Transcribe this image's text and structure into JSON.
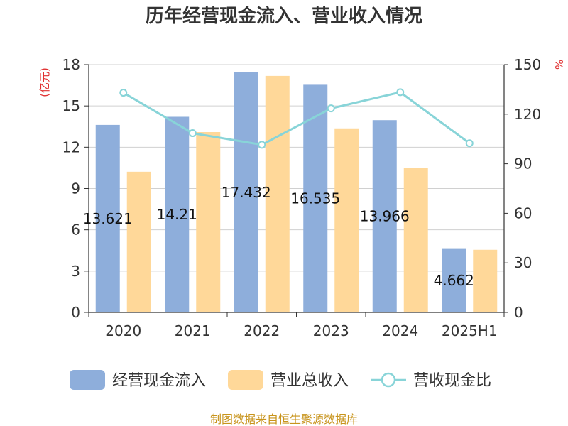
{
  "chart_data": {
    "type": "bar",
    "title": "历年经营现金流入、营业收入情况",
    "categories": [
      "2020",
      "2021",
      "2022",
      "2023",
      "2024",
      "2025H1"
    ],
    "series": [
      {
        "name": "经营现金流入",
        "type": "bar",
        "axis": "left",
        "color": "#8eaedb",
        "values": [
          13.621,
          14.21,
          17.432,
          16.535,
          13.966,
          4.662
        ],
        "labels": [
          "13.621",
          "14.21",
          "17.432",
          "16.535",
          "13.966",
          "4.662"
        ]
      },
      {
        "name": "营业总收入",
        "type": "bar",
        "axis": "left",
        "color": "#ffd899",
        "values": [
          10.22,
          13.1,
          17.18,
          13.37,
          10.48,
          4.55
        ]
      },
      {
        "name": "营收现金比",
        "type": "line",
        "axis": "right",
        "color": "#88d4d8",
        "values": [
          133,
          108.5,
          101.5,
          123.5,
          133.3,
          102.4
        ]
      }
    ],
    "y_left": {
      "label": "(亿元)",
      "min": 0,
      "max": 18,
      "ticks": [
        0,
        3,
        6,
        9,
        12,
        15,
        18
      ]
    },
    "y_right": {
      "label": "%",
      "min": 0,
      "max": 150,
      "ticks": [
        0,
        30,
        60,
        90,
        120,
        150
      ]
    },
    "grid": true,
    "legend_position": "bottom"
  },
  "source_note": "制图数据来自恒生聚源数据库"
}
